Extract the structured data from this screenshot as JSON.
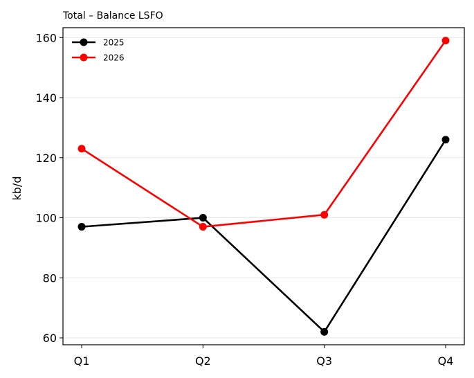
{
  "chart_data": {
    "type": "line",
    "title": "Total – Balance LSFO",
    "xlabel": "",
    "ylabel": "kb/d",
    "categories": [
      "Q1",
      "Q2",
      "Q3",
      "Q4"
    ],
    "series": [
      {
        "name": "2025",
        "values": [
          97,
          100,
          62,
          126
        ],
        "color": "#000000"
      },
      {
        "name": "2026",
        "values": [
          123,
          97,
          101,
          159
        ],
        "color": "#ff0000"
      }
    ],
    "ylim": [
      57.7,
      163.3
    ],
    "yticks": [
      60,
      80,
      100,
      120,
      140,
      160
    ],
    "grid": "horizontal",
    "legend_position": "top-left"
  }
}
